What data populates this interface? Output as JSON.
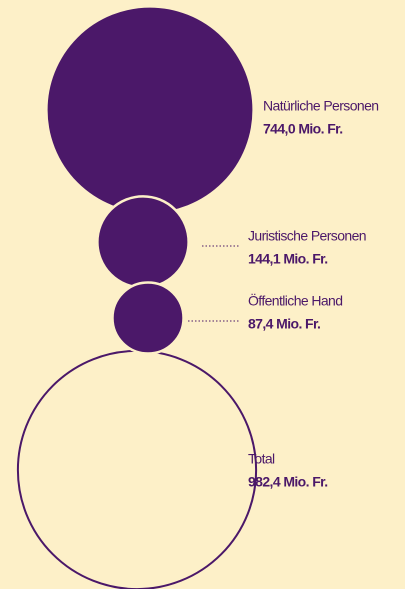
{
  "chart_data": {
    "type": "bubble",
    "categories": [
      "Natürliche Personen",
      "Juristische Personen",
      "Öffentliche Hand",
      "Total"
    ],
    "values": [
      744.0,
      144.1,
      87.4,
      982.4
    ],
    "value_labels": [
      "744,0 Mio. Fr.",
      "144,1 Mio. Fr.",
      "87,4 Mio. Fr.",
      "982,4 Mio. Fr."
    ],
    "color": "#4b1869"
  }
}
